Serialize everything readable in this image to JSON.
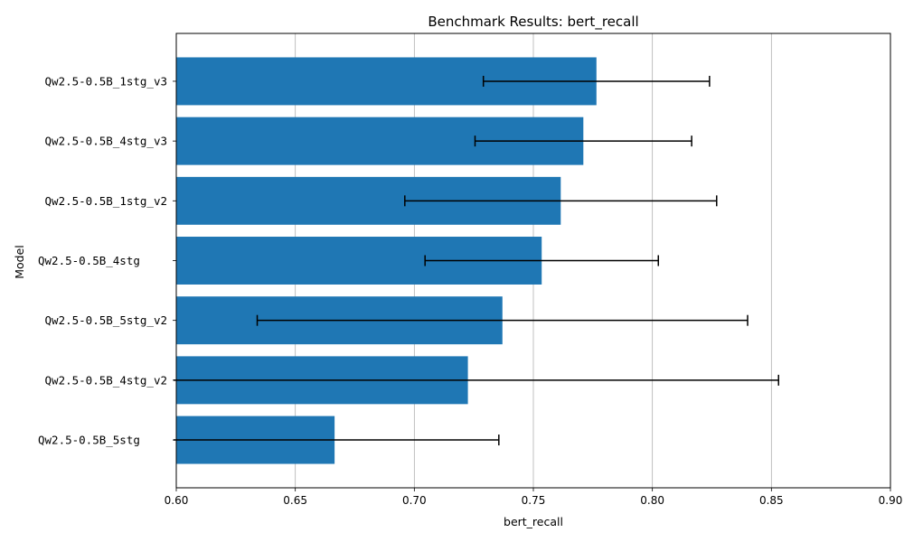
{
  "chart_data": {
    "type": "bar",
    "orientation": "horizontal",
    "title": "Benchmark Results: bert_recall",
    "xlabel": "bert_recall",
    "ylabel": "Model",
    "xlim": [
      0.6,
      0.9
    ],
    "xticks": [
      0.6,
      0.65,
      0.7,
      0.75,
      0.8,
      0.85,
      0.9
    ],
    "xtick_labels": [
      "0.60",
      "0.65",
      "0.70",
      "0.75",
      "0.80",
      "0.85",
      "0.90"
    ],
    "grid": "vertical",
    "bar_color": "#1f77b4",
    "error_color": "#000000",
    "categories": [
      "Qw2.5-0.5B_1stg_v3",
      "Qw2.5-0.5B_4stg_v3",
      "Qw2.5-0.5B_1stg_v2",
      "Qw2.5-0.5B_4stg    ",
      "Qw2.5-0.5B_5stg_v2",
      "Qw2.5-0.5B_4stg_v2",
      "Qw2.5-0.5B_5stg    "
    ],
    "values": [
      0.7765,
      0.771,
      0.7615,
      0.7535,
      0.737,
      0.7225,
      0.6665
    ],
    "errors": [
      0.0475,
      0.0455,
      0.0655,
      0.049,
      0.103,
      0.1305,
      0.069
    ]
  }
}
